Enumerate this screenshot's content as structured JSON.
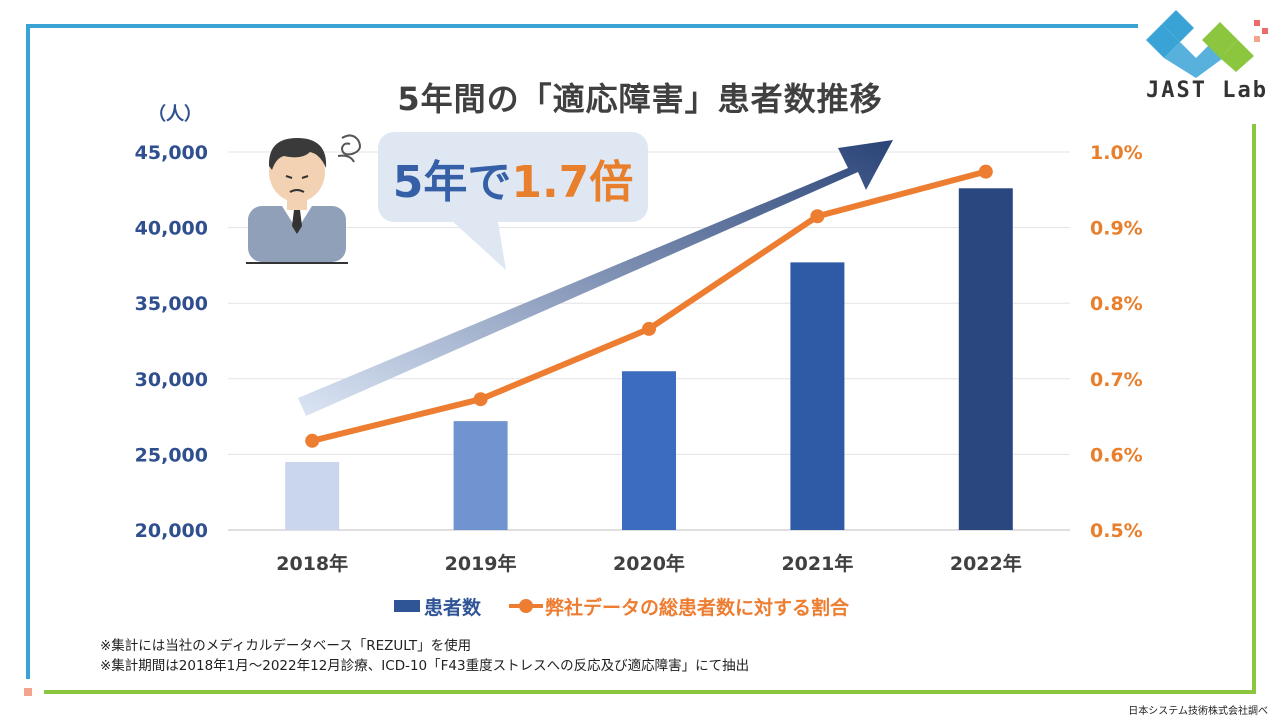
{
  "title": "5年間の「適応障害」患者数推移",
  "logo_text": "JAST Lab",
  "callout": {
    "prefix": "5年で",
    "highlight": "1.7倍"
  },
  "colors": {
    "frame_blue": "#3aa3d6",
    "frame_green": "#8cc63f",
    "bar_dark": "#2f5597",
    "line_orange": "#ed7d31",
    "axis_left_text": "#2f4f8f",
    "axis_right_text": "#e87f2c"
  },
  "chart_data": {
    "type": "bar",
    "title": "5年間の「適応障害」患者数推移",
    "categories": [
      "2018年",
      "2019年",
      "2020年",
      "2021年",
      "2022年"
    ],
    "y_unit_label": "（人）",
    "ylim": [
      20000,
      45000
    ],
    "y_ticks": [
      "20,000",
      "25,000",
      "30,000",
      "35,000",
      "40,000",
      "45,000"
    ],
    "y2lim": [
      0.5,
      1.0
    ],
    "y2_ticks": [
      "0.5%",
      "0.6%",
      "0.7%",
      "0.8%",
      "0.9%",
      "1.0%"
    ],
    "grid": true,
    "legend_position": "bottom",
    "series": [
      {
        "name": "患者数",
        "type": "bar",
        "axis": "left",
        "values": [
          24500,
          27200,
          30500,
          37700,
          42600
        ],
        "colors": [
          "#c9d6ec",
          "#7094d0",
          "#3c6cc0",
          "#2f5aa6",
          "#2a477f"
        ]
      },
      {
        "name": "弊社データの総患者数に対する割合",
        "type": "line",
        "axis": "right",
        "values": [
          0.618,
          0.673,
          0.766,
          0.915,
          0.974
        ],
        "color": "#ed7d31"
      }
    ]
  },
  "legend": {
    "bar_label": "患者数",
    "line_label": "弊社データの総患者数に対する割合"
  },
  "notes": [
    "※集計には当社のメディカルデータベース「REZULT」を使用",
    "※集計期間は2018年1月～2022年12月診療、ICD-10「F43重度ストレスへの反応及び適応障害」にて抽出"
  ],
  "credit": "日本システム技術株式会社調べ"
}
